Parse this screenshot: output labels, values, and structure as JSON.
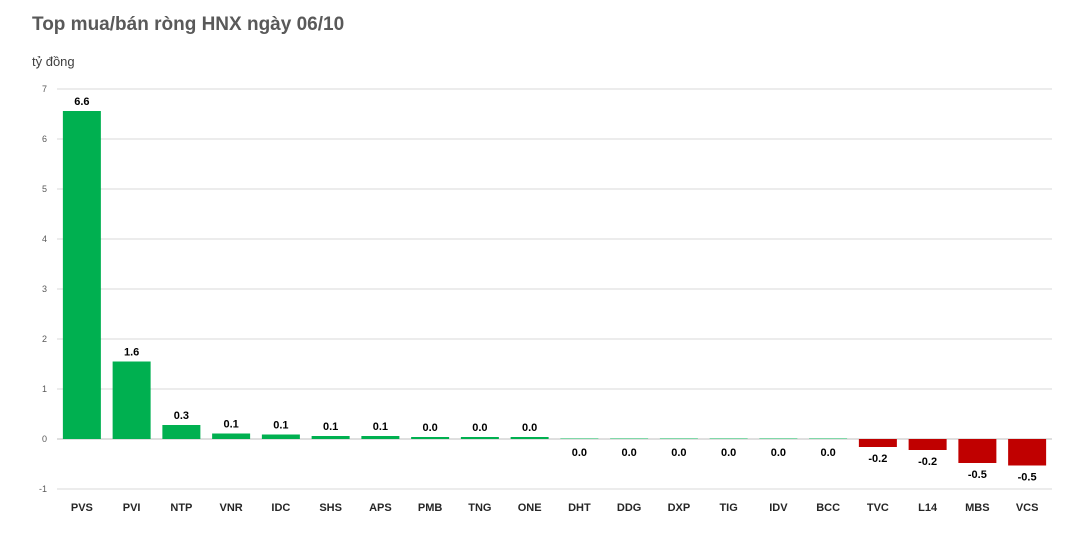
{
  "chart_data": {
    "type": "bar",
    "title": "Top mua/bán ròng HNX ngày 06/10",
    "ylabel": "tỷ đồng",
    "xlabel": "",
    "ylim": [
      -1,
      7
    ],
    "yticks": [
      -1,
      0,
      1,
      2,
      3,
      4,
      5,
      6,
      7
    ],
    "grid": true,
    "categories": [
      "PVS",
      "PVI",
      "NTP",
      "VNR",
      "IDC",
      "SHS",
      "APS",
      "PMB",
      "TNG",
      "ONE",
      "DHT",
      "DDG",
      "DXP",
      "TIG",
      "IDV",
      "BCC",
      "TVC",
      "L14",
      "MBS",
      "VCS"
    ],
    "values": [
      6.56,
      1.55,
      0.28,
      0.11,
      0.09,
      0.06,
      0.06,
      0.04,
      0.04,
      0.04,
      0.01,
      0.01,
      0.01,
      0.01,
      0.01,
      0.01,
      -0.16,
      -0.22,
      -0.48,
      -0.53
    ],
    "data_labels": [
      "6.6",
      "1.6",
      "0.3",
      "0.1",
      "0.1",
      "0.1",
      "0.1",
      "0.0",
      "0.0",
      "0.0",
      "0.0",
      "0.0",
      "0.0",
      "0.0",
      "0.0",
      "0.0",
      "-0.2",
      "-0.2",
      "-0.5",
      "-0.5"
    ],
    "colors": {
      "positive": "#00b050",
      "negative": "#c00000",
      "grid": "#d9d9d9"
    }
  }
}
